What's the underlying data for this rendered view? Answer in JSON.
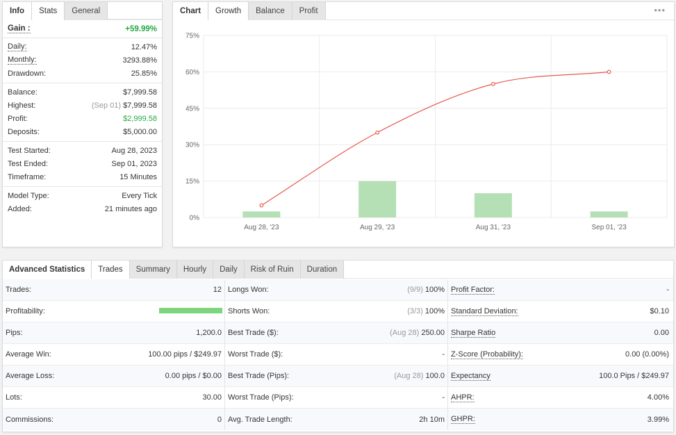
{
  "info": {
    "tabs": [
      "Info",
      "Stats",
      "General"
    ],
    "gain": {
      "label": "Gain :",
      "value": "+59.99%"
    },
    "groups": [
      [
        {
          "label": "Daily:",
          "value": "12.47%",
          "underline": true
        },
        {
          "label": "Monthly:",
          "value": "3293.88%",
          "underline": true
        },
        {
          "label": "Drawdown:",
          "value": "25.85%"
        }
      ],
      [
        {
          "label": "Balance:",
          "value": "$7,999.58"
        },
        {
          "label": "Highest:",
          "value": "$7,999.58",
          "note": "(Sep 01)"
        },
        {
          "label": "Profit:",
          "value": "$2,999.58",
          "green": true
        },
        {
          "label": "Deposits:",
          "value": "$5,000.00"
        }
      ],
      [
        {
          "label": "Test Started:",
          "value": "Aug 28, 2023"
        },
        {
          "label": "Test Ended:",
          "value": "Sep 01, 2023"
        },
        {
          "label": "Timeframe:",
          "value": "15 Minutes"
        }
      ],
      [
        {
          "label": "Model Type:",
          "value": "Every Tick"
        },
        {
          "label": "Added:",
          "value": "21 minutes ago"
        }
      ]
    ]
  },
  "chart": {
    "tabs": [
      "Chart",
      "Growth",
      "Balance",
      "Profit"
    ],
    "menu": "•••",
    "colors": {
      "line": "#e8574a",
      "bar": "#b5e0b5",
      "grid": "#ebebeb"
    }
  },
  "chart_data": {
    "type": "line",
    "categories": [
      "Aug 28, '23",
      "Aug 29, '23",
      "Aug 31, '23",
      "Sep 01, '23"
    ],
    "yticks": [
      "75%",
      "60%",
      "45%",
      "30%",
      "15%",
      "0%"
    ],
    "ylim": [
      0,
      75
    ],
    "series": [
      {
        "type": "line",
        "values": [
          5,
          35,
          55,
          60
        ]
      },
      {
        "type": "bar",
        "values": [
          2.5,
          15,
          10,
          2.5
        ]
      }
    ],
    "grid": true
  },
  "advanced": {
    "tabs": [
      "Advanced Statistics",
      "Trades",
      "Summary",
      "Hourly",
      "Daily",
      "Risk of Ruin",
      "Duration"
    ],
    "rows": [
      [
        {
          "label": "Trades:",
          "value": "12"
        },
        {
          "label": "Longs Won:",
          "note": "(9/9)",
          "value": "100%"
        },
        {
          "label": "Profit Factor:",
          "value": "-",
          "underline": true
        }
      ],
      [
        {
          "label": "Profitability:",
          "value": "",
          "bar": 1.0
        },
        {
          "label": "Shorts Won:",
          "note": "(3/3)",
          "value": "100%"
        },
        {
          "label": "Standard Deviation:",
          "value": "$0.10",
          "underline": true
        }
      ],
      [
        {
          "label": "Pips:",
          "value": "1,200.0"
        },
        {
          "label": "Best Trade ($):",
          "note": "(Aug 28)",
          "value": "250.00"
        },
        {
          "label": "Sharpe Ratio",
          "value": "0.00",
          "underline": true
        }
      ],
      [
        {
          "label": "Average Win:",
          "value": "100.00 pips / $249.97"
        },
        {
          "label": "Worst Trade ($):",
          "value": "-"
        },
        {
          "label": "Z-Score (Probability):",
          "value": "0.00 (0.00%)",
          "underline": true
        }
      ],
      [
        {
          "label": "Average Loss:",
          "value": "0.00 pips / $0.00"
        },
        {
          "label": "Best Trade (Pips):",
          "note": "(Aug 28)",
          "value": "100.0"
        },
        {
          "label": "Expectancy",
          "value": "100.0 Pips / $249.97",
          "underline": true
        }
      ],
      [
        {
          "label": "Lots:",
          "value": "30.00"
        },
        {
          "label": "Worst Trade (Pips):",
          "value": "-"
        },
        {
          "label": "AHPR:",
          "value": "4.00%",
          "underline": true
        }
      ],
      [
        {
          "label": "Commissions:",
          "value": "0"
        },
        {
          "label": "Avg. Trade Length:",
          "value": "2h 10m"
        },
        {
          "label": "GHPR:",
          "value": "3.99%",
          "underline": true
        }
      ]
    ]
  }
}
